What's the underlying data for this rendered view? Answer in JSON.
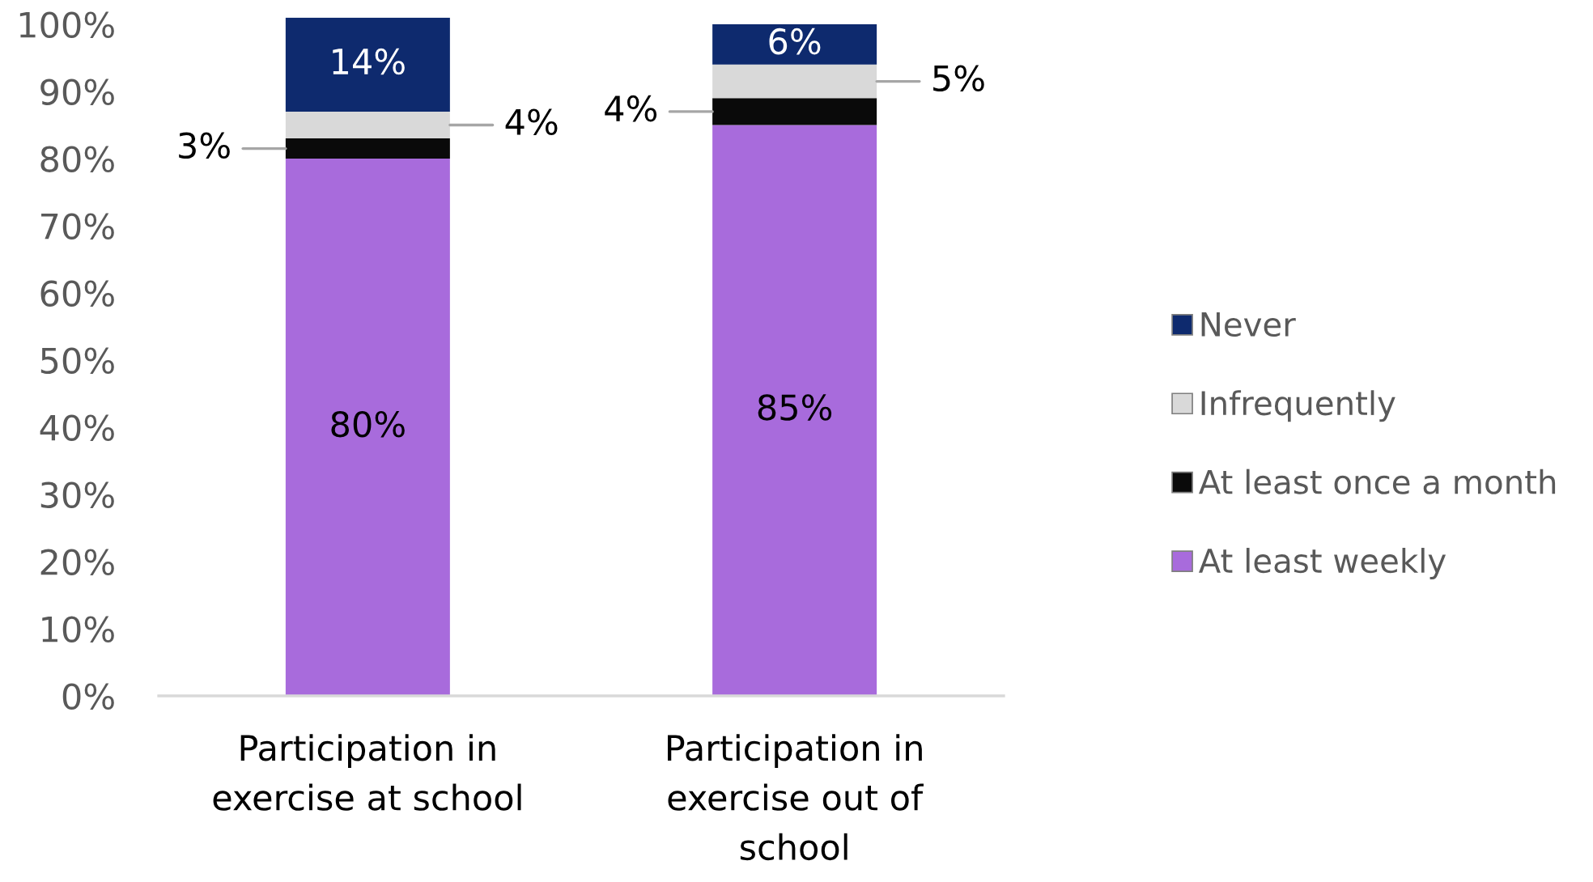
{
  "chart_data": {
    "type": "bar",
    "stacked": true,
    "categories": [
      "Participation in\nexercise at school",
      "Participation in\nexercise out of\nschool"
    ],
    "series": [
      {
        "name": "At least weekly",
        "color": "#a86bdc",
        "values": [
          80,
          85
        ],
        "value_labels": [
          "80%",
          "85%"
        ]
      },
      {
        "name": "At least once a month",
        "color": "#0a0a0a",
        "values": [
          3,
          4
        ],
        "value_labels": [
          "3%",
          "4%"
        ]
      },
      {
        "name": "Infrequently",
        "color": "#d9d9d9",
        "values": [
          4,
          5
        ],
        "value_labels": [
          "4%",
          "5%"
        ]
      },
      {
        "name": "Never",
        "color": "#0e2a6e",
        "values": [
          14,
          6
        ],
        "value_labels": [
          "14%",
          "6%"
        ]
      }
    ],
    "ylim": [
      0,
      101
    ],
    "yticks": [
      {
        "value": 0,
        "label": "0%"
      },
      {
        "value": 10,
        "label": "10%"
      },
      {
        "value": 20,
        "label": "20%"
      },
      {
        "value": 30,
        "label": "30%"
      },
      {
        "value": 40,
        "label": "40%"
      },
      {
        "value": 50,
        "label": "50%"
      },
      {
        "value": 60,
        "label": "60%"
      },
      {
        "value": 70,
        "label": "70%"
      },
      {
        "value": 80,
        "label": "80%"
      },
      {
        "value": 90,
        "label": "90%"
      },
      {
        "value": 100,
        "label": "100%"
      }
    ],
    "legend": "right"
  }
}
